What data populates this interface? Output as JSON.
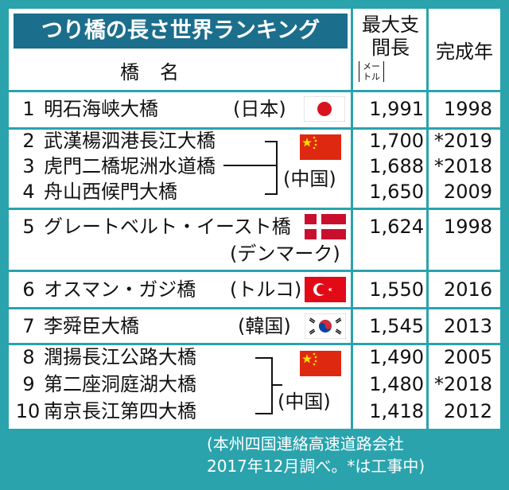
{
  "title": "つり橋の長さ世界ランキング",
  "headers": {
    "name": "橋名",
    "span_line1": "最大支",
    "span_line2": "間長",
    "span_unit": "(メートル)",
    "unit_top": "メー",
    "unit_bottom": "トル",
    "year": "完成年"
  },
  "rows": [
    {
      "rank": "1",
      "name": "明石海峡大橋",
      "country": "(日本)",
      "span": "1,991",
      "year": "1998"
    },
    {
      "rank": "2",
      "name": "武漢楊泗港長江大橋",
      "span": "1,700",
      "year": "*2019"
    },
    {
      "rank": "3",
      "name": "虎門二橋坭洲水道橋",
      "span": "1,688",
      "year": "*2018"
    },
    {
      "rank": "4",
      "name": "舟山西候門大橋",
      "span": "1,650",
      "year": "2009"
    },
    {
      "rank": "5",
      "name": "グレートベルト・イースト橋",
      "country": "(デンマーク)",
      "span": "1,624",
      "year": "1998"
    },
    {
      "rank": "6",
      "name": "オスマン・ガジ橋",
      "country": "(トルコ)",
      "span": "1,550",
      "year": "2016"
    },
    {
      "rank": "7",
      "name": "李舜臣大橋",
      "country": "(韓国)",
      "span": "1,545",
      "year": "2013"
    },
    {
      "rank": "8",
      "name": "潤揚長江公路大橋",
      "span": "1,490",
      "year": "2005"
    },
    {
      "rank": "9",
      "name": "第二座洞庭湖大橋",
      "span": "1,480",
      "year": "*2018"
    },
    {
      "rank": "10",
      "name": "南京長江第四大橋",
      "span": "1,418",
      "year": "2012"
    }
  ],
  "group_country_1": "(中国)",
  "group_country_2": "(中国)",
  "flags": {
    "japan": {
      "field": "#ffffff",
      "disc": "#d9121f"
    },
    "china": {
      "field": "#de2910",
      "star": "#ffde00"
    },
    "denmark": {
      "field": "#c8102e",
      "cross": "#ffffff"
    },
    "turkey": {
      "field": "#e30a17",
      "symbol": "#ffffff"
    },
    "korea": {
      "field": "#ffffff",
      "red": "#cd2e3a",
      "blue": "#0047a0",
      "bars": "#111111"
    }
  },
  "footer_line1": "(本州四国連絡高速道路会社",
  "footer_line2": "2017年12月調べ。*は工事中)",
  "colors": {
    "background": "#2aa3ad",
    "title_bg": "#1b6e8c"
  }
}
